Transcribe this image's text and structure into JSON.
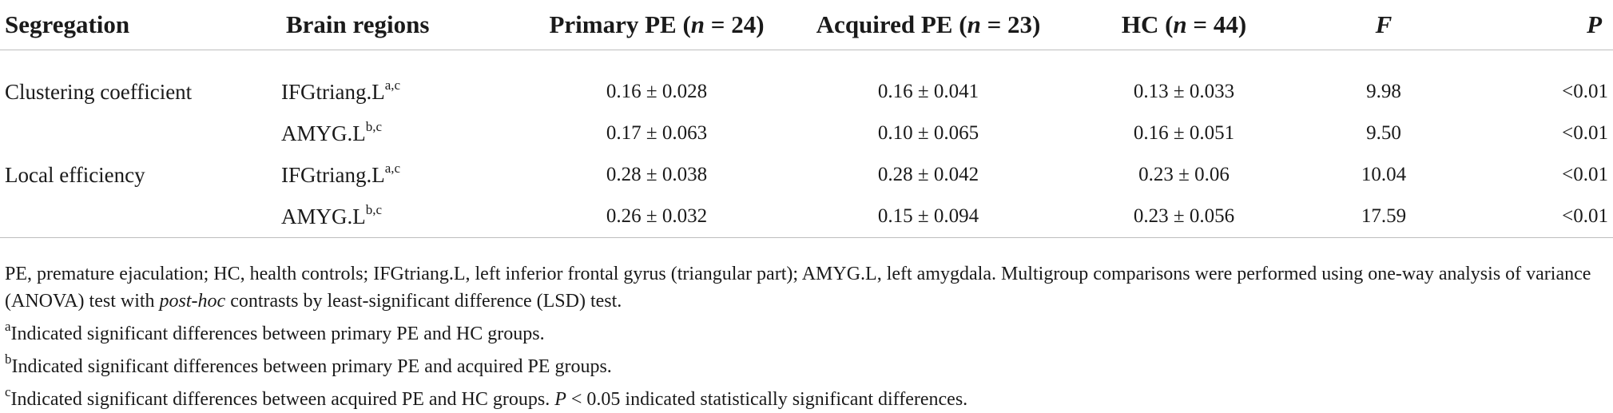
{
  "table": {
    "headers": {
      "segregation": "Segregation",
      "brain_regions": "Brain regions",
      "primary_pe": {
        "label": "Primary PE (",
        "n_italic": "n",
        "rest": " = 24)"
      },
      "acquired_pe": {
        "label": "Acquired PE (",
        "n_italic": "n",
        "rest": " = 23)"
      },
      "hc": {
        "label": "HC (",
        "n_italic": "n",
        "rest": " = 44)"
      },
      "f": "F",
      "p": "P"
    },
    "rows": [
      {
        "segregation": "Clustering coefficient",
        "region": "IFGtriang.L",
        "sup": "a,c",
        "primary": "0.16 ± 0.028",
        "acquired": "0.16 ± 0.041",
        "hc": "0.13 ± 0.033",
        "f": "9.98",
        "p": "<0.01"
      },
      {
        "segregation": "",
        "region": "AMYG.L",
        "sup": "b,c",
        "primary": "0.17 ± 0.063",
        "acquired": "0.10 ± 0.065",
        "hc": "0.16 ± 0.051",
        "f": "9.50",
        "p": "<0.01"
      },
      {
        "segregation": "Local efficiency",
        "region": "IFGtriang.L",
        "sup": "a,c",
        "primary": "0.28 ± 0.038",
        "acquired": "0.28 ± 0.042",
        "hc": "0.23 ± 0.06",
        "f": "10.04",
        "p": "<0.01"
      },
      {
        "segregation": "",
        "region": "AMYG.L",
        "sup": "b,c",
        "primary": "0.26 ± 0.032",
        "acquired": "0.15 ± 0.094",
        "hc": "0.23 ± 0.056",
        "f": "17.59",
        "p": "<0.01"
      }
    ]
  },
  "notes": {
    "abbrev_part1": "PE, premature ejaculation; HC, health controls; IFGtriang.L, left inferior frontal gyrus (triangular part); AMYG.L, left amygdala. Multigroup comparisons were performed using one-way analysis of variance (ANOVA) test with ",
    "abbrev_italic": "post-hoc",
    "abbrev_part2": " contrasts by least-significant difference (LSD) test.",
    "a": {
      "mark": "a",
      "text": "Indicated significant differences between primary PE and HC groups."
    },
    "b": {
      "mark": "b",
      "text": "Indicated significant differences between primary PE and acquired PE groups."
    },
    "c": {
      "mark": "c",
      "text": "Indicated significant differences between acquired PE and HC groups. ",
      "p_italic": "P",
      "text2": " < 0.05 indicated statistically significant differences."
    }
  }
}
